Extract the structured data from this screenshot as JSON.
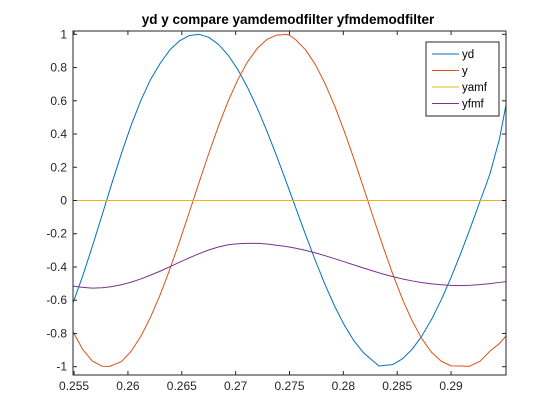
{
  "chart_data": {
    "type": "line",
    "title": "yd y compare yamdemodfilter yfmdemodfilter",
    "xlabel": "",
    "ylabel": "",
    "xlim": [
      0.2549,
      0.2951
    ],
    "ylim": [
      -1.05,
      1.02
    ],
    "xticks": [
      0.255,
      0.26,
      0.265,
      0.27,
      0.275,
      0.28,
      0.285,
      0.29
    ],
    "xtick_labels": [
      "0.255",
      "0.26",
      "0.265",
      "0.27",
      "0.275",
      "0.28",
      "0.285",
      "0.29"
    ],
    "yticks": [
      -1,
      -0.8,
      -0.6,
      -0.4,
      -0.2,
      0,
      0.2,
      0.4,
      0.6,
      0.8,
      1
    ],
    "ytick_labels": [
      "-1",
      "-0.8",
      "-0.6",
      "-0.4",
      "-0.2",
      "0",
      "0.2",
      "0.4",
      "0.6",
      "0.8",
      "1"
    ],
    "grid": false,
    "legend_position": "top-right",
    "series": [
      {
        "name": "yd",
        "color": "#0072BD",
        "x": [
          0.2549,
          0.2558,
          0.2567,
          0.2576,
          0.2585,
          0.2594,
          0.2603,
          0.2612,
          0.2621,
          0.263,
          0.2639,
          0.2648,
          0.2657,
          0.2666,
          0.2675,
          0.2684,
          0.2693,
          0.2702,
          0.2711,
          0.272,
          0.2729,
          0.2738,
          0.2747,
          0.2756,
          0.2765,
          0.2774,
          0.2783,
          0.2792,
          0.2801,
          0.281,
          0.2819,
          0.2828,
          0.2833,
          0.2846,
          0.2855,
          0.2864,
          0.2873,
          0.2882,
          0.2891,
          0.29,
          0.2909,
          0.2918,
          0.2927,
          0.2936,
          0.2945,
          0.2951
        ],
        "y": [
          -0.617,
          -0.454,
          -0.275,
          -0.088,
          0.102,
          0.284,
          0.453,
          0.602,
          0.728,
          0.826,
          0.907,
          0.961,
          0.993,
          1.0,
          0.982,
          0.94,
          0.875,
          0.788,
          0.681,
          0.557,
          0.418,
          0.269,
          0.112,
          -0.048,
          -0.207,
          -0.361,
          -0.506,
          -0.637,
          -0.751,
          -0.846,
          -0.918,
          -0.968,
          -0.996,
          -0.987,
          -0.952,
          -0.894,
          -0.814,
          -0.714,
          -0.596,
          -0.463,
          -0.318,
          -0.163,
          -0.003,
          0.158,
          0.372,
          0.576
        ]
      },
      {
        "name": "y",
        "color": "#D95319",
        "x": [
          0.2549,
          0.2558,
          0.2567,
          0.2576,
          0.2583,
          0.2594,
          0.2603,
          0.2612,
          0.2621,
          0.263,
          0.2639,
          0.2648,
          0.2657,
          0.2666,
          0.2675,
          0.2684,
          0.2693,
          0.2702,
          0.2711,
          0.272,
          0.2729,
          0.2738,
          0.2747,
          0.275,
          0.2756,
          0.2765,
          0.2774,
          0.2783,
          0.2792,
          0.2801,
          0.281,
          0.2819,
          0.2828,
          0.2837,
          0.2846,
          0.2855,
          0.2864,
          0.2873,
          0.2882,
          0.2891,
          0.29,
          0.2909,
          0.2917,
          0.2927,
          0.2936,
          0.2945,
          0.2951
        ],
        "y": [
          -0.79,
          -0.896,
          -0.966,
          -0.997,
          -0.998,
          -0.969,
          -0.907,
          -0.817,
          -0.702,
          -0.566,
          -0.412,
          -0.245,
          -0.07,
          0.108,
          0.282,
          0.447,
          0.597,
          0.727,
          0.834,
          0.915,
          0.969,
          0.995,
          0.999,
          0.995,
          0.966,
          0.906,
          0.818,
          0.704,
          0.568,
          0.414,
          0.247,
          0.072,
          -0.106,
          -0.28,
          -0.445,
          -0.596,
          -0.726,
          -0.833,
          -0.914,
          -0.968,
          -0.995,
          -0.996,
          -0.998,
          -0.967,
          -0.907,
          -0.86,
          -0.815
        ]
      },
      {
        "name": "yamf",
        "color": "#EDB120",
        "x": [
          0.2549,
          0.2951
        ],
        "y": [
          0.0,
          0.0
        ]
      },
      {
        "name": "yfmf",
        "color": "#7E2F8E",
        "x": [
          0.2549,
          0.2558,
          0.2567,
          0.2576,
          0.2585,
          0.2594,
          0.2603,
          0.2612,
          0.2621,
          0.263,
          0.2639,
          0.2648,
          0.2657,
          0.2666,
          0.2675,
          0.2684,
          0.2693,
          0.2702,
          0.2711,
          0.272,
          0.2729,
          0.2738,
          0.2747,
          0.2756,
          0.2765,
          0.2774,
          0.2783,
          0.2792,
          0.2801,
          0.281,
          0.2819,
          0.2828,
          0.2837,
          0.2846,
          0.2855,
          0.2864,
          0.2873,
          0.2882,
          0.2891,
          0.29,
          0.2909,
          0.2918,
          0.2927,
          0.2936,
          0.2945,
          0.2951
        ],
        "y": [
          -0.515,
          -0.523,
          -0.527,
          -0.525,
          -0.518,
          -0.507,
          -0.491,
          -0.472,
          -0.449,
          -0.425,
          -0.398,
          -0.371,
          -0.345,
          -0.32,
          -0.298,
          -0.28,
          -0.266,
          -0.26,
          -0.258,
          -0.258,
          -0.262,
          -0.269,
          -0.277,
          -0.287,
          -0.3,
          -0.315,
          -0.332,
          -0.35,
          -0.369,
          -0.388,
          -0.407,
          -0.425,
          -0.443,
          -0.458,
          -0.472,
          -0.484,
          -0.494,
          -0.502,
          -0.507,
          -0.511,
          -0.512,
          -0.51,
          -0.506,
          -0.5,
          -0.493,
          -0.488
        ]
      }
    ]
  }
}
